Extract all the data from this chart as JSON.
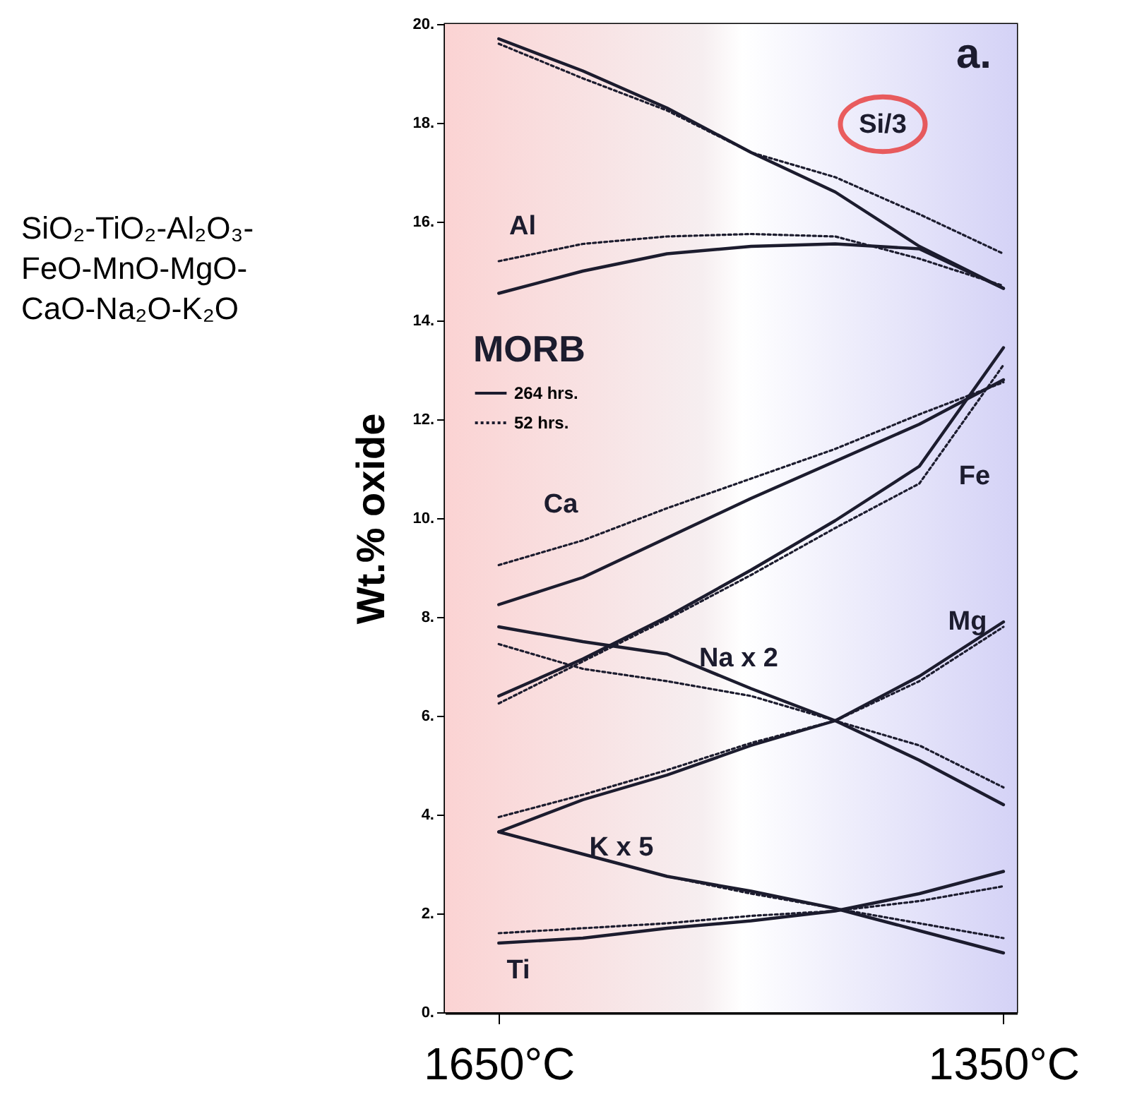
{
  "chart_data": {
    "type": "line",
    "ylabel": "Wt.% oxide",
    "legend_title": "MORB",
    "legend": "top left",
    "x": [
      1650,
      1600,
      1550,
      1500,
      1450,
      1400,
      1350
    ],
    "xlim": [
      1682,
      1342
    ],
    "xticks": [
      {
        "value": 1650,
        "label": "1650°C"
      },
      {
        "value": 1350,
        "label": "1350°C"
      }
    ],
    "ylim": [
      0,
      20
    ],
    "yticks": [
      {
        "value": 0,
        "label": "0."
      },
      {
        "value": 2,
        "label": "2."
      },
      {
        "value": 4,
        "label": "4."
      },
      {
        "value": 6,
        "label": "6."
      },
      {
        "value": 8,
        "label": "8."
      },
      {
        "value": 10,
        "label": "10."
      },
      {
        "value": 12,
        "label": "12."
      },
      {
        "value": 14,
        "label": "14."
      },
      {
        "value": 16,
        "label": "16."
      },
      {
        "value": 18,
        "label": "18."
      },
      {
        "value": 20,
        "label": "20."
      }
    ],
    "grid": false,
    "marker": "none",
    "series": [
      {
        "name": "264 hrs.",
        "color": "#1c1c2e",
        "line_style": "solid",
        "values": [
          19.7,
          19.05,
          18.3,
          17.4,
          16.6,
          15.5,
          14.65
        ]
      },
      {
        "name": "52 hrs.",
        "color": "#1c1c2e",
        "line_style": "dotted",
        "values": [
          19.6,
          18.9,
          18.25,
          17.4,
          16.9,
          16.15,
          15.35
        ]
      },
      {
        "color": "#1c1c2e",
        "line_style": "solid",
        "values": [
          14.55,
          15.0,
          15.35,
          15.5,
          15.55,
          15.45,
          14.65
        ]
      },
      {
        "color": "#1c1c2e",
        "line_style": "dotted",
        "values": [
          15.2,
          15.55,
          15.7,
          15.75,
          15.7,
          15.25,
          14.7
        ]
      },
      {
        "color": "#1c1c2e",
        "line_style": "solid",
        "values": [
          8.25,
          8.8,
          9.6,
          10.4,
          11.15,
          11.9,
          12.8
        ]
      },
      {
        "color": "#1c1c2e",
        "line_style": "dotted",
        "values": [
          9.05,
          9.55,
          10.2,
          10.8,
          11.4,
          12.1,
          12.75
        ]
      },
      {
        "color": "#1c1c2e",
        "line_style": "solid",
        "values": [
          6.4,
          7.15,
          8.0,
          8.95,
          9.95,
          11.05,
          13.45
        ]
      },
      {
        "color": "#1c1c2e",
        "line_style": "dotted",
        "values": [
          6.25,
          7.1,
          7.95,
          8.85,
          9.8,
          10.7,
          13.1
        ]
      },
      {
        "color": "#1c1c2e",
        "line_style": "solid",
        "values": [
          7.8,
          7.5,
          7.25,
          6.55,
          5.9,
          5.1,
          4.2
        ]
      },
      {
        "color": "#1c1c2e",
        "line_style": "dotted",
        "values": [
          7.45,
          6.95,
          6.7,
          6.4,
          5.9,
          5.4,
          4.55
        ]
      },
      {
        "color": "#1c1c2e",
        "line_style": "solid",
        "values": [
          3.65,
          4.3,
          4.8,
          5.4,
          5.9,
          6.8,
          7.9
        ]
      },
      {
        "color": "#1c1c2e",
        "line_style": "dotted",
        "values": [
          3.95,
          4.4,
          4.9,
          5.45,
          5.9,
          6.7,
          7.8
        ]
      },
      {
        "color": "#1c1c2e",
        "line_style": "solid",
        "values": [
          3.65,
          3.2,
          2.75,
          2.45,
          2.1,
          1.65,
          1.2
        ]
      },
      {
        "color": "#1c1c2e",
        "line_style": "dotted",
        "values": [
          3.65,
          3.2,
          2.75,
          2.4,
          2.1,
          1.8,
          1.5
        ]
      },
      {
        "color": "#1c1c2e",
        "line_style": "solid",
        "values": [
          1.4,
          1.5,
          1.7,
          1.85,
          2.05,
          2.4,
          2.85
        ]
      },
      {
        "color": "#1c1c2e",
        "line_style": "dotted",
        "values": [
          1.6,
          1.7,
          1.8,
          1.95,
          2.05,
          2.25,
          2.55
        ]
      }
    ],
    "annotations": [
      "Si/3",
      "Al",
      "Ca",
      "Fe",
      "Na x 2",
      "Mg",
      "K x 5",
      "Ti",
      "a.",
      "SiO₂-TiO₂-Al₂O₃-\nFeO-MnO-MgO-\nCaO-Na₂O-K₂O"
    ]
  }
}
